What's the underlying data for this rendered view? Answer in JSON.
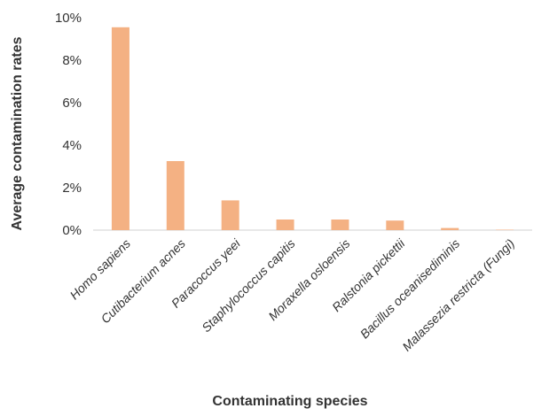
{
  "chart_data": {
    "type": "bar",
    "xlabel": "Contaminating species",
    "ylabel": "Average contamination rates",
    "categories": [
      "Homo sapiens",
      "Cutibacterium acnes",
      "Paracoccus yeei",
      "Staphylococcus capitis",
      "Moraxella osloensis",
      "Ralstonia pickettii",
      "Bacillus oceanisediminis",
      "Malassezia restricta (Fungi)"
    ],
    "values": [
      9.55,
      3.25,
      1.4,
      0.5,
      0.5,
      0.45,
      0.1,
      0.02
    ],
    "ylim": [
      0,
      10
    ],
    "yticks": [
      "0%",
      "2%",
      "4%",
      "6%",
      "8%",
      "10%"
    ],
    "grid": false,
    "bar_color": "#F4B183"
  }
}
